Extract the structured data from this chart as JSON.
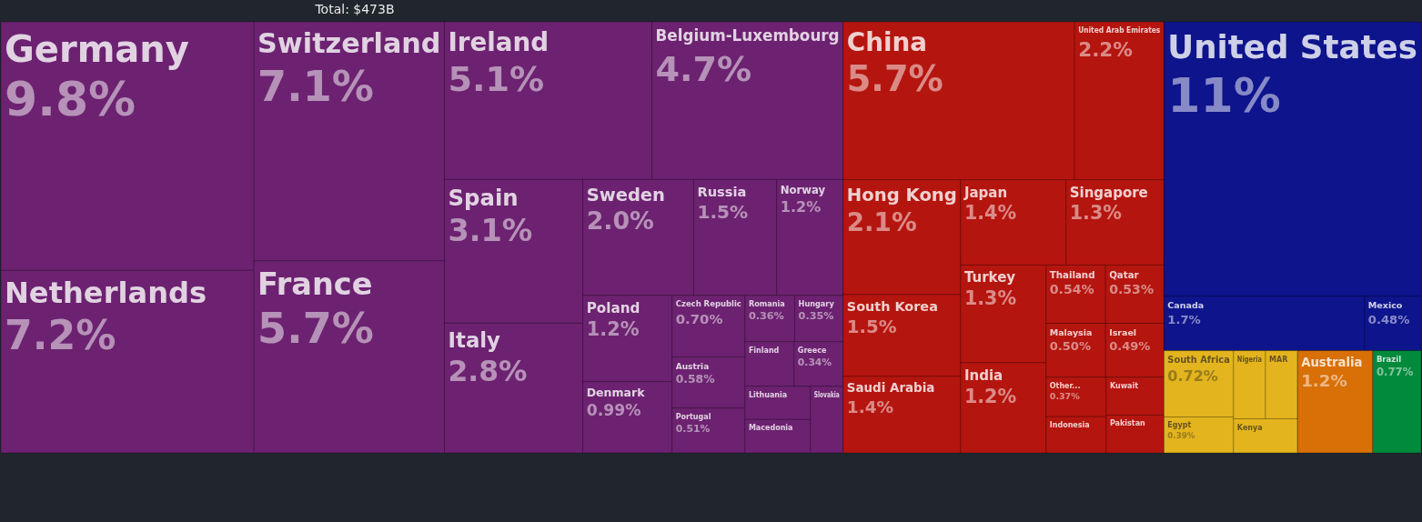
{
  "chart_data": {
    "type": "other",
    "title": "Total: $473B",
    "categories": [
      "Germany",
      "Netherlands",
      "Switzerland",
      "France",
      "Ireland",
      "Belgium-Luxembourg",
      "Spain",
      "Italy",
      "Sweden",
      "Russia",
      "Norway",
      "Poland",
      "Denmark",
      "Czech Republic",
      "Austria",
      "Portugal",
      "Finland",
      "Romania",
      "Hungary",
      "Greece",
      "Lithuania",
      "Macedonia",
      "Slovakia",
      "China",
      "United Arab Emirates",
      "Hong Kong",
      "South Korea",
      "Saudi Arabia",
      "Japan",
      "Singapore",
      "Turkey",
      "India",
      "Thailand",
      "Qatar",
      "Malaysia",
      "Israel",
      "Indonesia",
      "Kuwait",
      "Pakistan",
      "Other...",
      "United States",
      "Canada",
      "Mexico",
      "South Africa",
      "Nigeria",
      "Egypt",
      "MAR",
      "Kenya",
      "Brazil",
      "Australia"
    ],
    "values": [
      9.8,
      7.2,
      7.1,
      5.7,
      5.1,
      4.7,
      3.1,
      2.8,
      2.0,
      1.5,
      1.2,
      1.2,
      0.99,
      0.7,
      0.58,
      0.51,
      null,
      0.36,
      0.35,
      0.34,
      null,
      null,
      null,
      5.7,
      2.2,
      2.1,
      1.5,
      1.4,
      1.4,
      1.3,
      1.3,
      1.2,
      0.54,
      0.53,
      0.5,
      0.49,
      null,
      null,
      null,
      0.37,
      11,
      1.7,
      0.48,
      0.72,
      null,
      0.39,
      null,
      null,
      0.77,
      1.2
    ],
    "value_labels": [
      "9.8%",
      "7.2%",
      "7.1%",
      "5.7%",
      "5.1%",
      "4.7%",
      "3.1%",
      "2.8%",
      "2.0%",
      "1.5%",
      "1.2%",
      "1.2%",
      "0.99%",
      "0.70%",
      "0.58%",
      "0.51%",
      null,
      "0.36%",
      "0.35%",
      "0.34%",
      null,
      null,
      null,
      "5.7%",
      "2.2%",
      "2.1%",
      "1.5%",
      "1.4%",
      "1.4%",
      "1.3%",
      "1.3%",
      "1.2%",
      "0.54%",
      "0.53%",
      "0.50%",
      "0.49%",
      null,
      null,
      null,
      "0.37%",
      "11%",
      "1.7%",
      "0.48%",
      "0.72%",
      null,
      "0.39%",
      null,
      null,
      "0.77%",
      "1.2%"
    ],
    "colors": [
      "#6c2270",
      "#6c2270",
      "#6c2270",
      "#6c2270",
      "#6c2270",
      "#6c2270",
      "#6c2270",
      "#6c2270",
      "#6c2270",
      "#6c2270",
      "#6c2270",
      "#6c2270",
      "#6c2270",
      "#6c2270",
      "#6c2270",
      "#6c2270",
      "#6c2270",
      "#6c2270",
      "#6c2270",
      "#6c2270",
      "#6c2270",
      "#6c2270",
      "#6c2270",
      "#b5150f",
      "#b5150f",
      "#b5150f",
      "#b5150f",
      "#b5150f",
      "#b5150f",
      "#b5150f",
      "#b5150f",
      "#b5150f",
      "#b5150f",
      "#b5150f",
      "#b5150f",
      "#b5150f",
      "#b5150f",
      "#b5150f",
      "#b5150f",
      "#b5150f",
      "#0e148c",
      "#0e148c",
      "#0e148c",
      "#e3b41d",
      "#e3b41d",
      "#e3b41d",
      "#e3b41d",
      "#e3b41d",
      "#028a3c",
      "#d86f07"
    ]
  }
}
